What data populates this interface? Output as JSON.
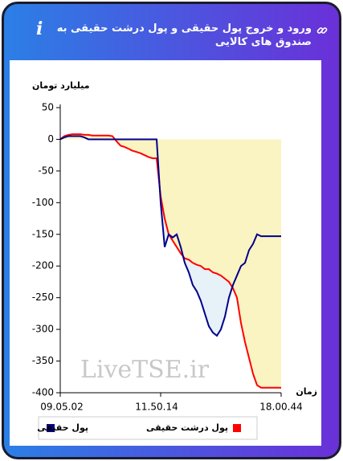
{
  "chart_data": {
    "type": "line",
    "title": "ورود و خروج پول حقیقی و پول درشت حقیقی به صندوق های کالایی",
    "y_label": "میلیارد تومان",
    "x_label": "زمان",
    "watermark": "LiveTSE.ir",
    "categories": [
      "09.05.02",
      null,
      null,
      null,
      null,
      null,
      null,
      null,
      null,
      null,
      null,
      null,
      null,
      null,
      null,
      null,
      null,
      null,
      null,
      null,
      null,
      null,
      null,
      null,
      null,
      "11.50.14",
      null,
      null,
      null,
      null,
      null,
      null,
      null,
      null,
      null,
      null,
      null,
      null,
      null,
      null,
      null,
      null,
      null,
      null,
      null,
      null,
      null,
      null,
      null,
      null,
      null,
      null,
      null,
      null,
      null,
      "18.00.44"
    ],
    "series": [
      {
        "name": "پول حقیقی",
        "color": "#00008b",
        "fill": "#e6f1f8",
        "values": [
          0,
          3,
          5,
          5,
          5,
          5,
          3,
          0,
          0,
          0,
          0,
          0,
          0,
          0,
          0,
          0,
          0,
          0,
          0,
          0,
          0,
          0,
          0,
          0,
          0,
          -100,
          -170,
          -150,
          -155,
          -150,
          -170,
          -195,
          -210,
          -230,
          -240,
          -255,
          -275,
          -295,
          -305,
          -310,
          -300,
          -280,
          -250,
          -230,
          -215,
          -200,
          -195,
          -175,
          -165,
          -150,
          -153,
          -153,
          -153,
          -153,
          -153,
          -153
        ]
      },
      {
        "name": "پول درشت حقیقی",
        "color": "#ff0000",
        "fill": "#faf3c2",
        "values": [
          0,
          5,
          7,
          8,
          8,
          8,
          7,
          7,
          6,
          6,
          6,
          6,
          6,
          5,
          -3,
          -10,
          -12,
          -15,
          -18,
          -20,
          -22,
          -25,
          -28,
          -30,
          -30,
          -90,
          -125,
          -150,
          -160,
          -170,
          -180,
          -188,
          -190,
          -195,
          -198,
          -200,
          -205,
          -205,
          -210,
          -212,
          -215,
          -220,
          -225,
          -235,
          -250,
          -290,
          -320,
          -345,
          -370,
          -388,
          -392,
          -392,
          -392,
          -392,
          -392,
          -392
        ]
      }
    ],
    "ylim": [
      -400,
      50
    ],
    "yticks": [
      -400,
      -350,
      -300,
      -250,
      -200,
      -150,
      -100,
      -50,
      0,
      50
    ]
  }
}
